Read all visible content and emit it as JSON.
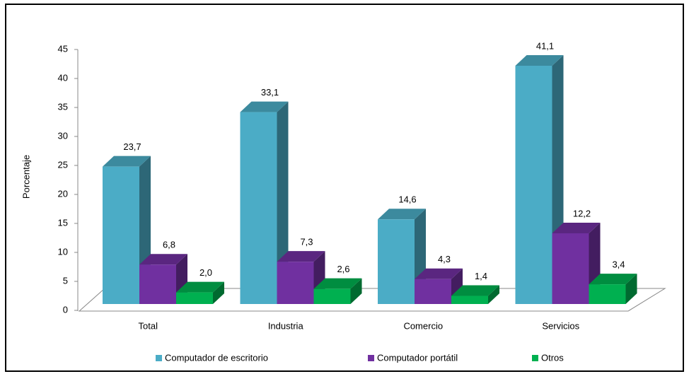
{
  "chart_data": {
    "type": "bar3d",
    "y_label": "Porcentaje",
    "categories": [
      "Total",
      "Industria",
      "Comercio",
      "Servicios"
    ],
    "series": [
      {
        "name": "Computador de escritorio",
        "color": "#4bacc6",
        "values": [
          23.7,
          33.1,
          14.6,
          41.1
        ],
        "value_labels": [
          "23,7",
          "33,1",
          "14,6",
          "41,1"
        ]
      },
      {
        "name": "Computador portátil",
        "color": "#7030a0",
        "values": [
          6.8,
          7.3,
          4.3,
          12.2
        ],
        "value_labels": [
          "6,8",
          "7,3",
          "4,3",
          "12,2"
        ]
      },
      {
        "name": "Otros",
        "color": "#00b050",
        "values": [
          2.0,
          2.6,
          1.4,
          3.4
        ],
        "value_labels": [
          "2,0",
          "2,6",
          "1,4",
          "3,4"
        ]
      }
    ],
    "ylim": [
      0,
      45
    ],
    "yticks": [
      0,
      5,
      10,
      15,
      20,
      25,
      30,
      35,
      40,
      45
    ],
    "legend": "bottom"
  }
}
